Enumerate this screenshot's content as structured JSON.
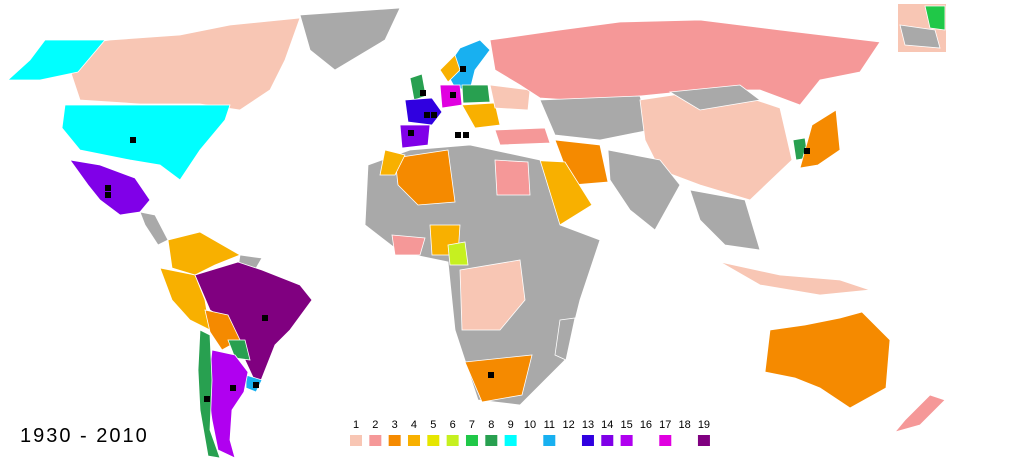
{
  "period": "1930 - 2010",
  "legend": [
    {
      "label": "1",
      "color": "#f8c6b4"
    },
    {
      "label": "2",
      "color": "#f59898"
    },
    {
      "label": "3",
      "color": "#f58a00"
    },
    {
      "label": "4",
      "color": "#f8b000"
    },
    {
      "label": "5",
      "color": "#e6e600"
    },
    {
      "label": "6",
      "color": "#c6f020"
    },
    {
      "label": "7",
      "color": "#20c848"
    },
    {
      "label": "8",
      "color": "#28a050"
    },
    {
      "label": "9",
      "color": "#00ffff"
    },
    {
      "label": "10",
      "color": "#ffffff"
    },
    {
      "label": "11",
      "color": "#18b0f0"
    },
    {
      "label": "12",
      "color": "#ffffff"
    },
    {
      "label": "13",
      "color": "#3000e0"
    },
    {
      "label": "14",
      "color": "#8000e8"
    },
    {
      "label": "15",
      "color": "#b000f0"
    },
    {
      "label": "16",
      "color": "#ffffff"
    },
    {
      "label": "17",
      "color": "#e000e0"
    },
    {
      "label": "18",
      "color": "#ffffff"
    },
    {
      "label": "19",
      "color": "#800080"
    }
  ]
}
